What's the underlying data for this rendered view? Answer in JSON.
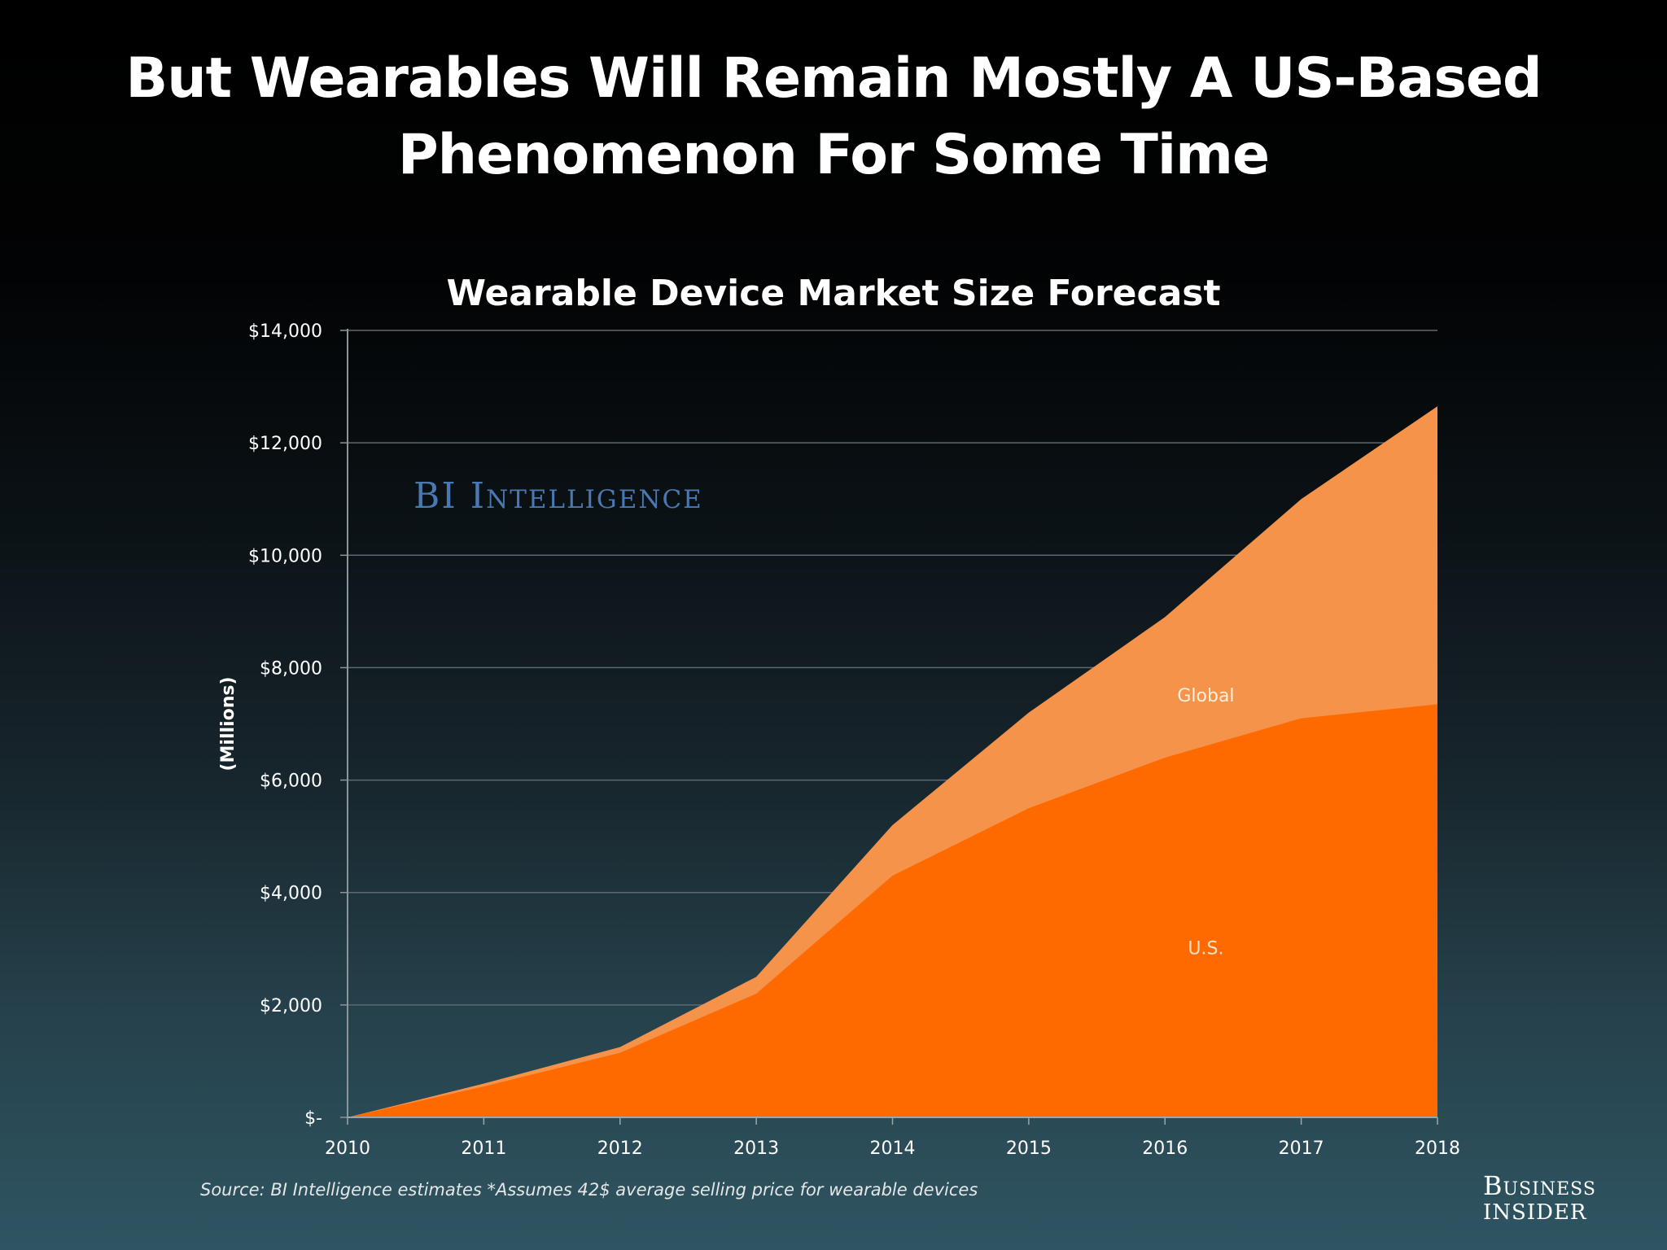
{
  "slide": {
    "title_line1": "But Wearables Will Remain Mostly A US-Based",
    "title_line2": "Phenomenon For Some Time"
  },
  "footer": {
    "source": "Source: BI Intelligence estimates *Assumes 42$ average selling price for wearable devices",
    "brand_line1": "Business",
    "brand_line2": "Insider"
  },
  "watermark": "BI Intelligence",
  "colors": {
    "global": "#f5934a",
    "us": "#ff6a00",
    "grid": "#5a6a70",
    "background_top": "#000000",
    "background_bottom": "#2f5562",
    "watermark": "#4a78b0"
  },
  "chart_data": {
    "type": "area",
    "stacked_overlay": true,
    "title": "Wearable Device Market Size Forecast",
    "xlabel": "",
    "ylabel": "(Millions)",
    "x": [
      "2010",
      "2011",
      "2012",
      "2013",
      "2014",
      "2015",
      "2016",
      "2017",
      "2018"
    ],
    "ylim": [
      0,
      14000
    ],
    "yticks": [
      0,
      2000,
      4000,
      6000,
      8000,
      10000,
      12000,
      14000
    ],
    "ytick_labels": [
      "$-",
      "$2,000",
      "$4,000",
      "$6,000",
      "$8,000",
      "$10,000",
      "$12,000",
      "$14,000"
    ],
    "grid": true,
    "series": [
      {
        "name": "Global",
        "values": [
          0,
          600,
          1250,
          2500,
          5200,
          7200,
          8900,
          11000,
          12650
        ]
      },
      {
        "name": "U.S.",
        "values": [
          0,
          550,
          1150,
          2200,
          4300,
          5500,
          6400,
          7100,
          7350
        ]
      }
    ],
    "series_labels": [
      {
        "text": "Global",
        "x": 2016.3,
        "y": 7400
      },
      {
        "text": "U.S.",
        "x": 2016.3,
        "y": 2900
      }
    ]
  }
}
